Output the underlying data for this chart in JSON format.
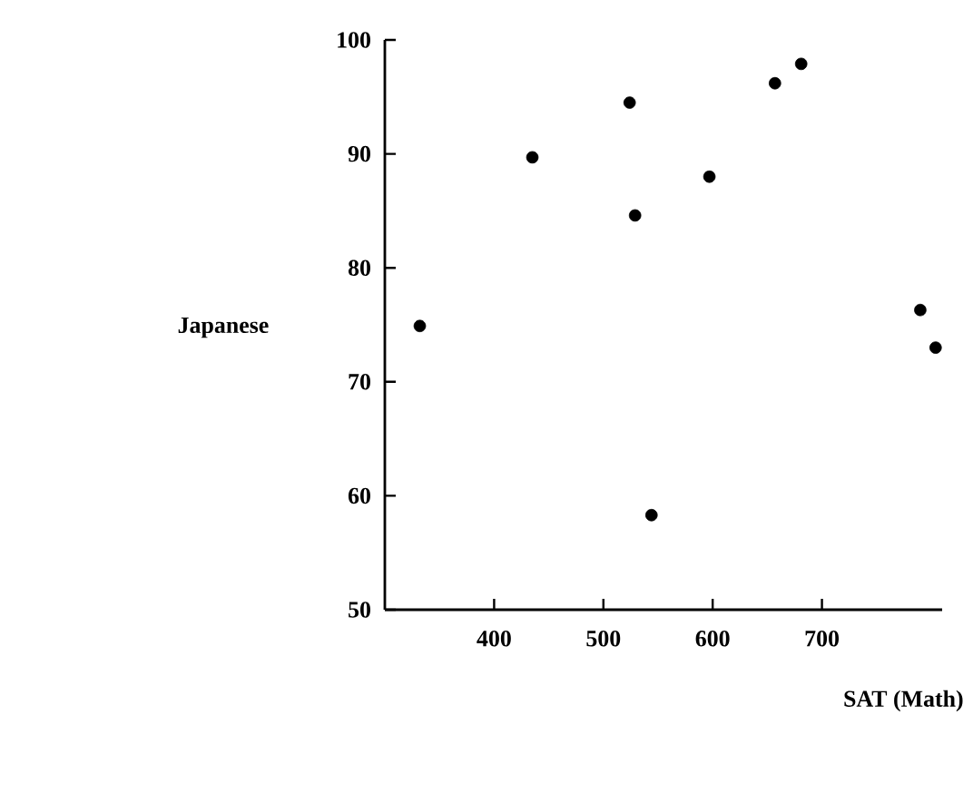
{
  "chart_data": {
    "type": "scatter",
    "xlabel": "SAT (Math)",
    "ylabel": "Japanese",
    "x": [
      332,
      435,
      524,
      529,
      544,
      597,
      657,
      681,
      790,
      804
    ],
    "values": [
      74.9,
      89.7,
      94.5,
      84.6,
      58.3,
      88.0,
      96.2,
      97.9,
      76.3,
      73.0
    ],
    "color": "#000000",
    "marker": "circle",
    "xlim": [
      300,
      810
    ],
    "ylim": [
      50,
      100
    ],
    "xticks": [
      400,
      500,
      600,
      700
    ],
    "yticks": [
      50,
      60,
      70,
      80,
      90,
      100
    ]
  }
}
